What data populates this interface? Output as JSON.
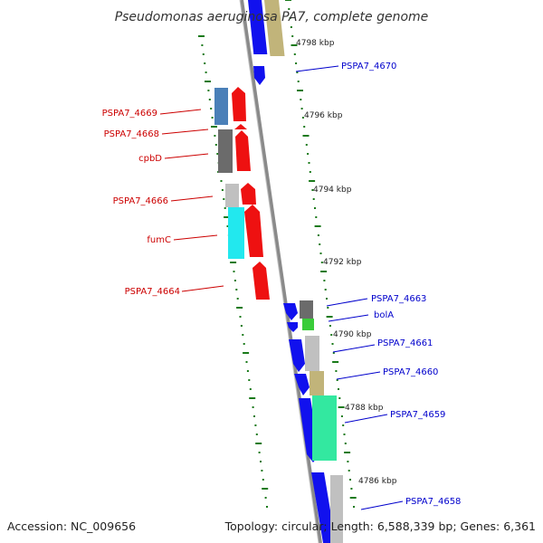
{
  "title": "Pseudomonas aeruginosa PA7, complete genome",
  "footer": {
    "accession": "Accession: NC_009656",
    "topology": "Topology: circular; Length: 6,588,339 bp; Genes: 6,361"
  },
  "colors": {
    "label_left": "#cc0000",
    "label_right": "#0000cc",
    "tick": "#1a7a1a",
    "backbone": "#808080",
    "reverse_strand": "#ee1111",
    "forward_strand": "#1111ee",
    "cog_blue": "#4a80b8",
    "cog_gray": "#6b6b6b",
    "cog_lightgray": "#c0c0c0",
    "cog_cyan": "#22e8ee",
    "cog_khaki": "#c1b47a",
    "cog_green": "#3acc3a",
    "cog_mint": "#33e8a0"
  },
  "scale_labels": [
    "4798 kbp",
    "4796 kbp",
    "4794 kbp",
    "4792 kbp",
    "4790 kbp",
    "4788 kbp",
    "4786 kbp"
  ],
  "genes_left": [
    {
      "label": "PSPA7_4669"
    },
    {
      "label": "PSPA7_4668"
    },
    {
      "label": "cpbD"
    },
    {
      "label": "PSPA7_4666"
    },
    {
      "label": "fumC"
    },
    {
      "label": "PSPA7_4664"
    }
  ],
  "genes_right": [
    {
      "label": "PSPA7_4670"
    },
    {
      "label": "PSPA7_4663"
    },
    {
      "label": "bolA"
    },
    {
      "label": "PSPA7_4661"
    },
    {
      "label": "PSPA7_4660"
    },
    {
      "label": "PSPA7_4659"
    },
    {
      "label": "PSPA7_4658"
    }
  ]
}
